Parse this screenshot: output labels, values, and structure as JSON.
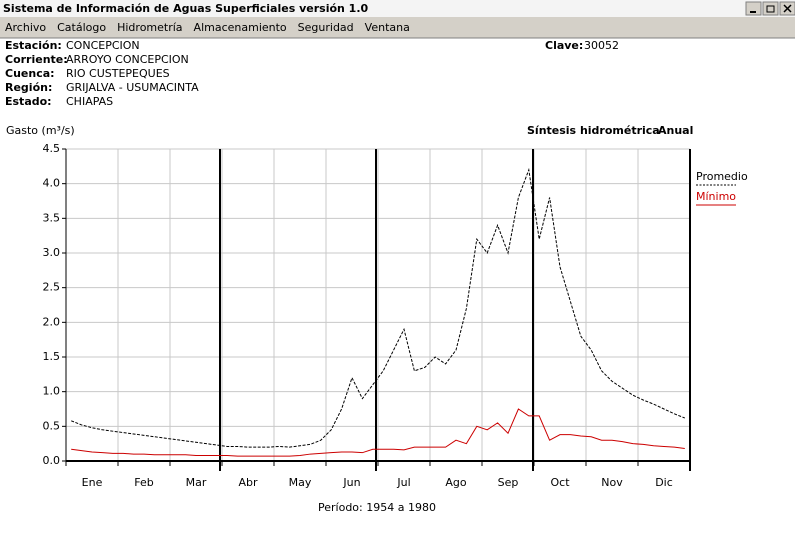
{
  "window": {
    "title": "Sistema de Información de Aguas Superficiales  versión 1.0"
  },
  "menu": [
    "Archivo",
    "Catálogo",
    "Hidrometría",
    "Almacenamiento",
    "Seguridad",
    "Ventana"
  ],
  "station": {
    "fields": [
      {
        "label": "Estación:",
        "value": "CONCEPCION"
      },
      {
        "label": "Corriente:",
        "value": "ARROYO CONCEPCION"
      },
      {
        "label": "Cuenca:",
        "value": "RIO CUSTEPEQUES"
      },
      {
        "label": "Región:",
        "value": "GRIJALVA - USUMACINTA"
      },
      {
        "label": "Estado:",
        "value": "CHIAPAS"
      }
    ],
    "clave_label": "Clave:",
    "clave": "30052"
  },
  "chart_data": {
    "type": "line",
    "title": "Síntesis hidrométrica",
    "subtitle": "Anual",
    "y_label": "Gasto (m³/s)",
    "x_label": "Período:  1954 a 1980",
    "categories": [
      null,
      null,
      "Ene",
      null,
      null,
      null,
      null,
      "Feb",
      null,
      null,
      null,
      null,
      "Mar",
      null,
      null,
      null,
      null,
      "Abr",
      null,
      null,
      null,
      null,
      "May",
      null,
      null,
      null,
      null,
      "Jun",
      null,
      null,
      null,
      null,
      "Jul",
      null,
      null,
      null,
      null,
      "Ago",
      null,
      null,
      null,
      null,
      "Sep",
      null,
      null,
      null,
      null,
      "Oct",
      null,
      null,
      null,
      null,
      "Nov",
      null,
      null,
      null,
      null,
      "Dic",
      null,
      null
    ],
    "series": [
      {
        "name": "Promedio",
        "color": "#000000",
        "values": [
          0.58,
          0.52,
          0.48,
          0.45,
          0.43,
          0.41,
          0.39,
          0.37,
          0.35,
          0.33,
          0.31,
          0.29,
          0.27,
          0.25,
          0.23,
          0.21,
          0.21,
          0.2,
          0.2,
          0.2,
          0.21,
          0.2,
          0.22,
          0.24,
          0.3,
          0.45,
          0.75,
          1.2,
          0.9,
          1.1,
          1.3,
          1.6,
          1.9,
          1.3,
          1.35,
          1.5,
          1.4,
          1.6,
          2.2,
          3.2,
          3.0,
          3.4,
          3.0,
          3.8,
          4.2,
          3.2,
          3.8,
          2.8,
          2.3,
          1.8,
          1.6,
          1.3,
          1.15,
          1.05,
          0.95,
          0.88,
          0.82,
          0.75,
          0.68,
          0.62
        ]
      },
      {
        "name": "Mínimo",
        "color": "#cc0000",
        "values": [
          0.17,
          0.15,
          0.13,
          0.12,
          0.11,
          0.11,
          0.1,
          0.1,
          0.09,
          0.09,
          0.09,
          0.09,
          0.08,
          0.08,
          0.08,
          0.08,
          0.07,
          0.07,
          0.07,
          0.07,
          0.07,
          0.07,
          0.08,
          0.1,
          0.11,
          0.12,
          0.13,
          0.13,
          0.12,
          0.17,
          0.17,
          0.17,
          0.16,
          0.2,
          0.2,
          0.2,
          0.2,
          0.3,
          0.25,
          0.5,
          0.45,
          0.55,
          0.4,
          0.75,
          0.65,
          0.65,
          0.3,
          0.38,
          0.38,
          0.36,
          0.35,
          0.3,
          0.3,
          0.28,
          0.25,
          0.24,
          0.22,
          0.21,
          0.2,
          0.18
        ]
      }
    ],
    "ylim": [
      0,
      4.5
    ],
    "yticks": [
      {
        "value": 0,
        "label": "0.0"
      },
      0.5,
      {
        "value": 1,
        "label": "1.0"
      },
      1.5,
      {
        "value": 2,
        "label": "2.0"
      },
      2.5,
      {
        "value": 3,
        "label": "3.0"
      },
      3.5,
      {
        "value": 4,
        "label": "4.0"
      },
      4.5
    ],
    "grid": true,
    "legend": "right"
  }
}
